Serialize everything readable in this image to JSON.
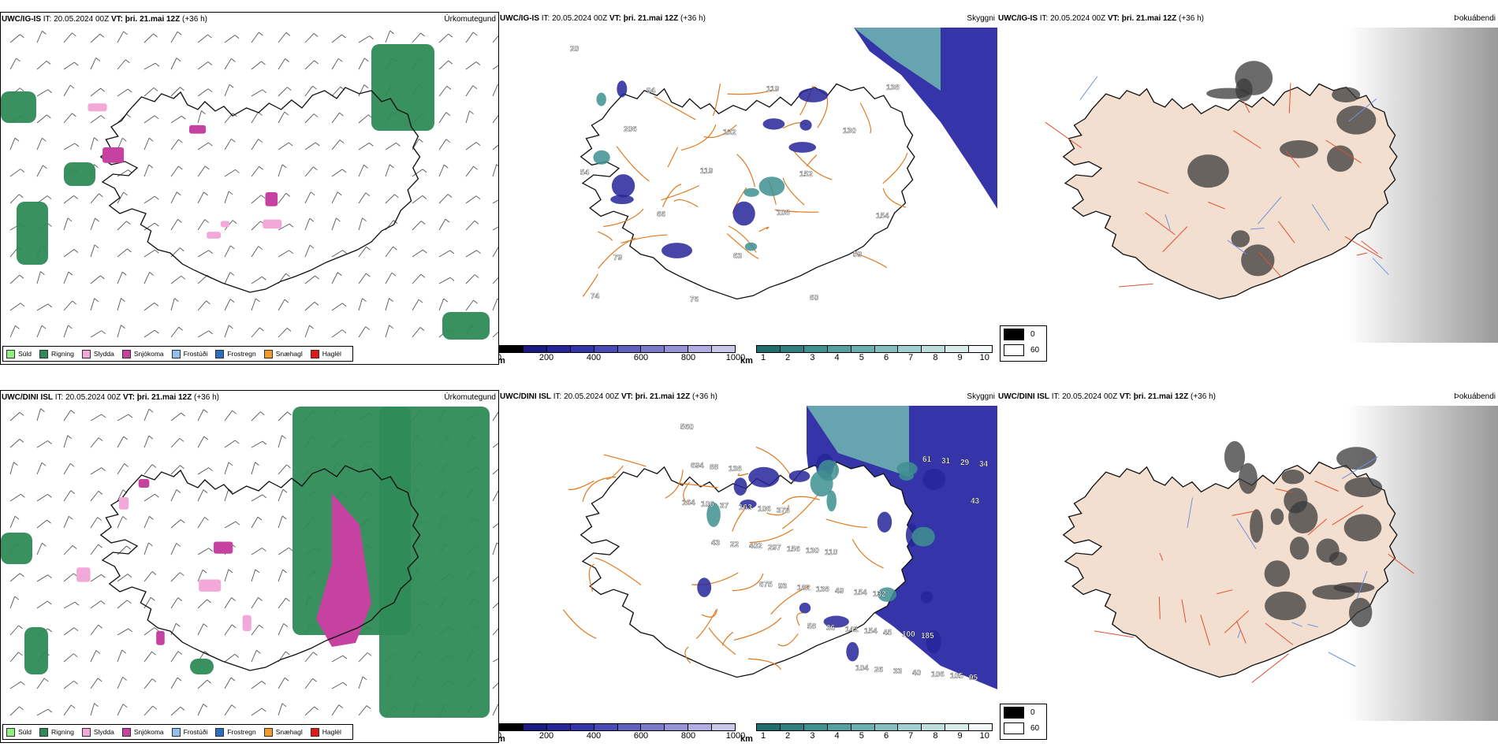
{
  "rows": [
    {
      "id": "igis",
      "precip": {
        "model_label": "UWC/IG-IS",
        "it_label": "IT:",
        "it_value": "20.05.2024 00Z",
        "vt_label": "VT:",
        "vt_value": "þri. 21.mai 12Z",
        "lead": "(+36 h)",
        "product": "Úrkomutegund"
      },
      "vis": {
        "model_label": "UWC/IG-IS",
        "it_label": "IT:",
        "it_value": "20.05.2024 00Z",
        "vt_label": "VT:",
        "vt_value": "þri. 21.mai 12Z",
        "lead": "(+36 h)",
        "product": "Skyggni"
      },
      "fog": {
        "model_label": "UWC/IG-IS",
        "it_label": "IT:",
        "it_value": "20.05.2024 00Z",
        "vt_label": "VT:",
        "vt_value": "þri. 21.mai 12Z",
        "lead": "(+36 h)",
        "product": "Þokuábendi"
      },
      "vis_labels": [
        "20",
        "94",
        "132",
        "152",
        "154",
        "79",
        "76",
        "119",
        "130",
        "54",
        "66",
        "63",
        "60",
        "138",
        "206",
        "119",
        "108",
        "59",
        "74"
      ]
    },
    {
      "id": "dini",
      "precip": {
        "model_label": "UWC/DINI ISL",
        "it_label": "IT:",
        "it_value": "20.05.2024 00Z",
        "vt_label": "VT:",
        "vt_value": "þri. 21.mai 12Z",
        "lead": "(+36 h)",
        "product": "Úrkomutegund"
      },
      "vis": {
        "model_label": "UWC/DINI ISL",
        "it_label": "IT:",
        "it_value": "20.05.2024 00Z",
        "vt_label": "VT:",
        "vt_value": "þri. 21.mai 12Z",
        "lead": "(+36 h)",
        "product": "Skyggni"
      },
      "fog": {
        "model_label": "UWC/DINI ISL",
        "it_label": "IT:",
        "it_value": "20.05.2024 00Z",
        "vt_label": "VT:",
        "vt_value": "þri. 21.mai 12Z",
        "lead": "(+36 h)",
        "product": "Þokuábendi"
      },
      "vis_labels": [
        "560",
        "138",
        "378",
        "110",
        "132",
        "185",
        "95",
        "88",
        "106",
        "130",
        "154",
        "100",
        "105",
        "694",
        "163",
        "156",
        "49",
        "45",
        "106",
        "34",
        "37",
        "297",
        "138",
        "154",
        "40",
        "29",
        "106",
        "402",
        "182",
        "141",
        "33",
        "31",
        "164",
        "22",
        "93",
        "36",
        "26",
        "61",
        "43",
        "43",
        "675",
        "58",
        "104"
      ]
    }
  ],
  "precip_legend": [
    {
      "label": "Súld",
      "color": "#8fef7f"
    },
    {
      "label": "Rigning",
      "color": "#2e8b57"
    },
    {
      "label": "Slydda",
      "color": "#f2a8d8"
    },
    {
      "label": "Snjókoma",
      "color": "#c542a0"
    },
    {
      "label": "Frostúði",
      "color": "#8fc0ef"
    },
    {
      "label": "Frostregn",
      "color": "#2a6fbf"
    },
    {
      "label": "Snæhagl",
      "color": "#ef9a2a"
    },
    {
      "label": "Haglél",
      "color": "#e01818"
    }
  ],
  "vis_scale_m": {
    "unit": "m",
    "ticks": [
      "0",
      "200",
      "400",
      "600",
      "800",
      "1000"
    ],
    "colors": [
      "#000000",
      "#1a1a80",
      "#26269a",
      "#3434aa",
      "#4a4ab6",
      "#6060c0",
      "#7a7acb",
      "#9494d6",
      "#aeaee0",
      "#c8c8ea"
    ]
  },
  "vis_scale_km": {
    "unit": "km",
    "ticks": [
      "1",
      "2",
      "3",
      "4",
      "5",
      "6",
      "7",
      "8",
      "9",
      "10"
    ],
    "colors": [
      "#1f6f6f",
      "#2f8080",
      "#3f9090",
      "#55a0a0",
      "#6bb0b0",
      "#85c0c0",
      "#a0d0d0",
      "#bcdede",
      "#d8ecec",
      "#f4fafa"
    ]
  },
  "fog_legend": [
    {
      "value": "0",
      "color": "#000000"
    },
    {
      "value": "60",
      "color": "#ffffff"
    }
  ]
}
